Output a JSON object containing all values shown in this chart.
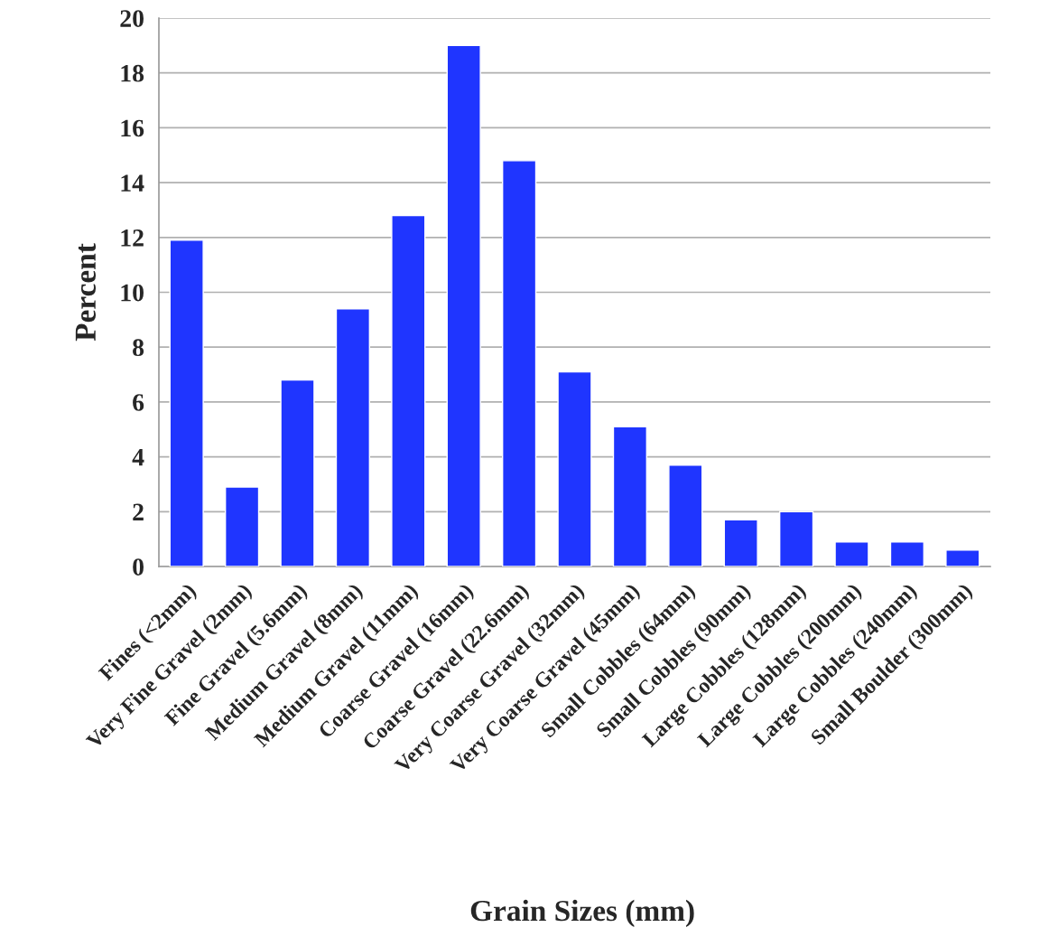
{
  "chart_data": {
    "type": "bar",
    "xlabel": "Grain Sizes (mm)",
    "ylabel": "Percent",
    "categories": [
      "Fines (<2mm)",
      "Very Fine Gravel (2mm)",
      "Fine Gravel (5.6mm)",
      "Medium Gravel (8mm)",
      "Medium Gravel (11mm)",
      "Coarse Gravel (16mm)",
      "Coarse Gravel (22.6mm)",
      "Very Coarse Gravel (32mm)",
      "Very Coarse Gravel (45mm)",
      "Small Cobbles (64mm)",
      "Small Cobbles (90mm)",
      "Large Cobbles (128mm)",
      "Large Cobbles (200mm)",
      "Large Cobbles (240mm)",
      "Small Boulder (300mm)"
    ],
    "values": [
      11.9,
      2.9,
      6.8,
      9.4,
      12.8,
      19.0,
      14.8,
      7.1,
      5.1,
      3.7,
      1.7,
      2.0,
      0.9,
      0.9,
      0.6
    ],
    "color": "#1f35ff",
    "ylim": [
      0,
      20
    ],
    "yticks": [
      0,
      2,
      4,
      6,
      8,
      10,
      12,
      14,
      16,
      18,
      20
    ],
    "grid": "y"
  }
}
